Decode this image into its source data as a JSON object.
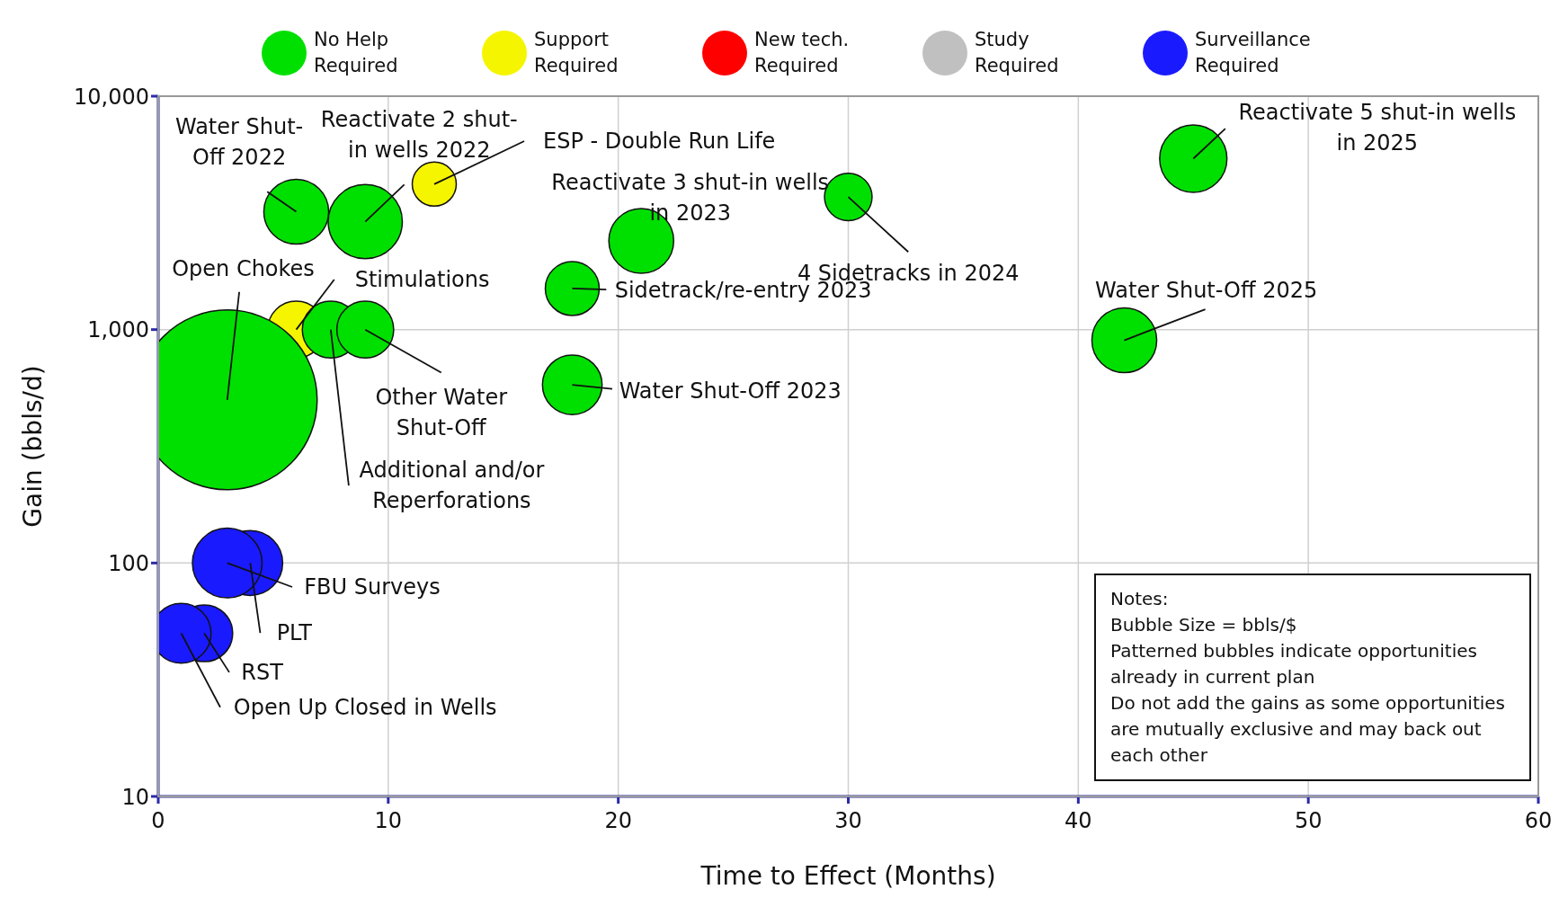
{
  "chart_data": {
    "type": "bubble",
    "xlabel": "Time to Effect (Months)",
    "ylabel": "Gain (bbls/d)",
    "xlim": [
      0,
      60
    ],
    "xticks": [
      0,
      10,
      20,
      30,
      40,
      50,
      60
    ],
    "ylim": [
      10,
      10000
    ],
    "yticks": [
      {
        "value": 10,
        "label": "10"
      },
      {
        "value": 100,
        "label": "100"
      },
      {
        "value": 1000,
        "label": "1,000"
      },
      {
        "value": 10000,
        "label": "10,000"
      }
    ],
    "log": "y",
    "grid": true,
    "legend": "top",
    "series": [
      {
        "name": "No Help Required",
        "color": "#00e000",
        "x": [
          6,
          9,
          21,
          30,
          45,
          18,
          42,
          18,
          3,
          7.5,
          9
        ],
        "values": [
          3200,
          2900,
          2400,
          3700,
          5400,
          1500,
          900,
          580,
          500,
          1000,
          1000
        ],
        "sizes": [
          0.13,
          0.17,
          0.13,
          0.07,
          0.14,
          0.09,
          0.13,
          0.11,
          1,
          0.1,
          0.1
        ]
      },
      {
        "name": "Support Required",
        "color": "#f5f500",
        "x": [
          12,
          6
        ],
        "values": [
          4200,
          1000
        ],
        "sizes": [
          0.06,
          0.1
        ]
      },
      {
        "name": "New tech. Required",
        "color": "#ff0000"
      },
      {
        "name": "Study Required",
        "color": "#c0c0c0"
      },
      {
        "name": "Surveillance Required",
        "color": "#1a1aff",
        "x": [
          4,
          3,
          2,
          1
        ],
        "values": [
          100,
          100,
          50,
          50
        ],
        "sizes": [
          0.13,
          0.15,
          0.1,
          0.11
        ]
      }
    ],
    "annotations": [
      {
        "text": "Water Shut-Off 2022",
        "x": 6,
        "y": 3200
      },
      {
        "text": "Reactivate 2 shut-in wells 2022",
        "x": 9,
        "y": 2900
      },
      {
        "text": "ESP - Double Run Life",
        "x": 12,
        "y": 4200
      },
      {
        "text": "Reactivate 3 shut-in wells in 2023",
        "x": 21,
        "y": 2400
      },
      {
        "text": "4 Sidetracks in 2024",
        "x": 30,
        "y": 3700
      },
      {
        "text": "Reactivate 5 shut-in wells in 2025",
        "x": 45,
        "y": 5400
      },
      {
        "text": "Sidetrack/re-entry 2023",
        "x": 18,
        "y": 1500
      },
      {
        "text": "Water Shut-Off 2025",
        "x": 42,
        "y": 900
      },
      {
        "text": "Water Shut-Off 2023",
        "x": 18,
        "y": 580
      },
      {
        "text": "Open Chokes",
        "x": 3,
        "y": 500
      },
      {
        "text": "Stimulations",
        "x": 6,
        "y": 1000
      },
      {
        "text": "Additional and/or Reperforations",
        "x": 7.5,
        "y": 1000
      },
      {
        "text": "Other Water Shut-Off",
        "x": 9,
        "y": 1000
      },
      {
        "text": "FBU Surveys",
        "x": 3,
        "y": 100
      },
      {
        "text": "PLT",
        "x": 4,
        "y": 100
      },
      {
        "text": "RST",
        "x": 2,
        "y": 50
      },
      {
        "text": "Open Up Closed in Wells",
        "x": 1,
        "y": 50
      },
      "Notes:",
      "Bubble Size = bbls/$",
      "Patterned bubbles indicate opportunities already in current plan",
      "Do not add the gains as some opportunities are mutually exclusive and may back out each other"
    ]
  }
}
